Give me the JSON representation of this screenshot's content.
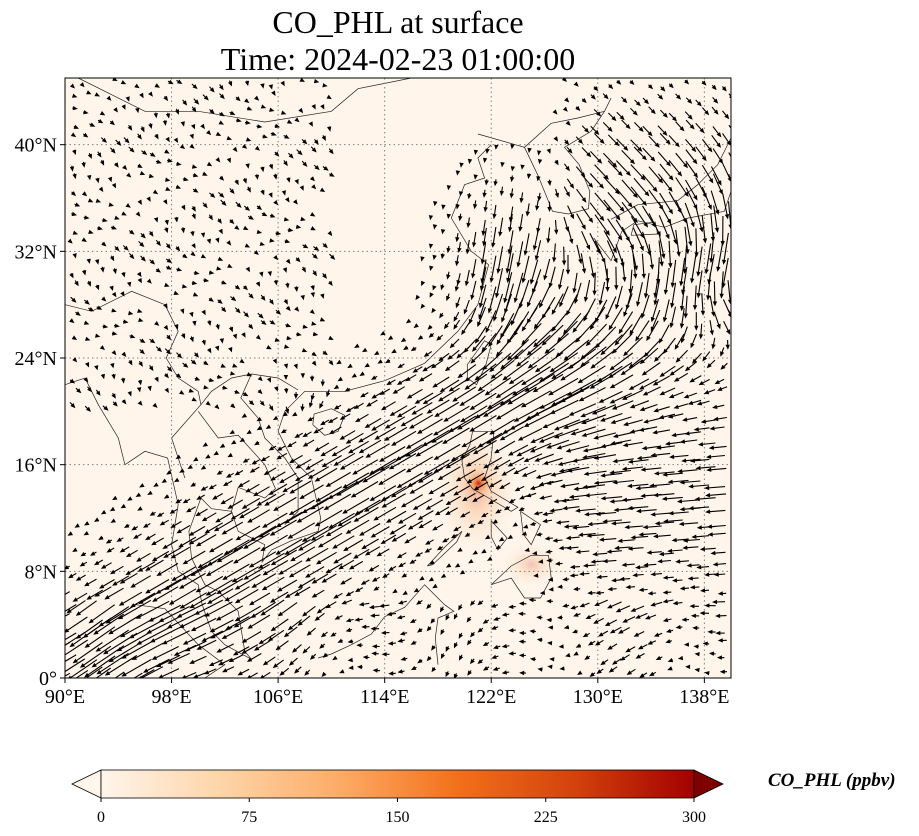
{
  "title": {
    "line1": "CO_PHL at surface",
    "line2": "Time: 2024-02-23 01:00:00"
  },
  "map": {
    "projection": "PlateCarree",
    "lon_range": [
      90,
      140
    ],
    "lat_range": [
      0,
      45
    ],
    "lon_ticks": [
      {
        "value": 90,
        "label": "90°E"
      },
      {
        "value": 98,
        "label": "98°E"
      },
      {
        "value": 106,
        "label": "106°E"
      },
      {
        "value": 114,
        "label": "114°E"
      },
      {
        "value": 122,
        "label": "122°E"
      },
      {
        "value": 130,
        "label": "130°E"
      },
      {
        "value": 138,
        "label": "138°E"
      }
    ],
    "lat_ticks": [
      {
        "value": 0,
        "label": "0°"
      },
      {
        "value": 8,
        "label": "8°N"
      },
      {
        "value": 16,
        "label": "16°N"
      },
      {
        "value": 24,
        "label": "24°N"
      },
      {
        "value": 32,
        "label": "32°N"
      },
      {
        "value": 40,
        "label": "40°N"
      }
    ],
    "gridlines": "dotted",
    "background_color": "#fff5eb",
    "field": "CO_PHL concentration (filled), wind vectors (arrows), coastlines and borders (thin lines)",
    "hotspot": {
      "lon": 120.9,
      "lat": 14.6,
      "peak_ppbv": 300
    }
  },
  "colorbar": {
    "label": "CO_PHL (ppbv)",
    "colormap": "OrRd",
    "vmin": 0,
    "vmax": 300,
    "ticks": [
      "0",
      "75",
      "150",
      "225",
      "300"
    ],
    "extend": "both",
    "colors": [
      "#fff5eb",
      "#fdd5a9",
      "#fdac67",
      "#f3701b",
      "#d3420c",
      "#a30000",
      "#7f0000"
    ]
  }
}
